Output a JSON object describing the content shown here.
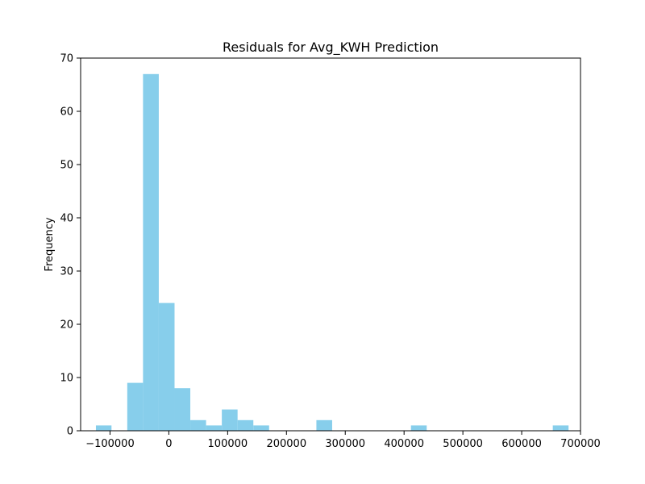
{
  "chart_data": {
    "type": "bar",
    "title": "Residuals for Avg_KWH Prediction",
    "xlabel": "",
    "ylabel": "Frequency",
    "xlim": [
      -150000,
      700000
    ],
    "ylim": [
      0,
      70
    ],
    "x_ticks": [
      -100000,
      0,
      100000,
      200000,
      300000,
      400000,
      500000,
      600000,
      700000
    ],
    "x_tick_labels": [
      "−100000",
      "0",
      "100000",
      "200000",
      "300000",
      "400000",
      "500000",
      "600000",
      "700000"
    ],
    "y_ticks": [
      0,
      10,
      20,
      30,
      40,
      50,
      60,
      70
    ],
    "y_tick_labels": [
      "0",
      "10",
      "20",
      "30",
      "40",
      "50",
      "60",
      "70"
    ],
    "bar_color": "#87ceeb",
    "grid": false,
    "bins": [
      {
        "x0": -124000,
        "x1": -97500,
        "count": 1
      },
      {
        "x0": -97500,
        "x1": -70700,
        "count": 0
      },
      {
        "x0": -70700,
        "x1": -43900,
        "count": 9
      },
      {
        "x0": -43900,
        "x1": -17100,
        "count": 67
      },
      {
        "x0": -17100,
        "x1": 9700,
        "count": 24
      },
      {
        "x0": 9700,
        "x1": 36500,
        "count": 8
      },
      {
        "x0": 36500,
        "x1": 63300,
        "count": 2
      },
      {
        "x0": 63300,
        "x1": 90100,
        "count": 1
      },
      {
        "x0": 90100,
        "x1": 116900,
        "count": 4
      },
      {
        "x0": 116900,
        "x1": 143700,
        "count": 2
      },
      {
        "x0": 143700,
        "x1": 170500,
        "count": 1
      },
      {
        "x0": 170500,
        "x1": 197300,
        "count": 0
      },
      {
        "x0": 197300,
        "x1": 224100,
        "count": 0
      },
      {
        "x0": 224100,
        "x1": 250900,
        "count": 0
      },
      {
        "x0": 250900,
        "x1": 277700,
        "count": 2
      },
      {
        "x0": 277700,
        "x1": 304500,
        "count": 0
      },
      {
        "x0": 304500,
        "x1": 331300,
        "count": 0
      },
      {
        "x0": 331300,
        "x1": 358100,
        "count": 0
      },
      {
        "x0": 358100,
        "x1": 384900,
        "count": 0
      },
      {
        "x0": 384900,
        "x1": 411700,
        "count": 0
      },
      {
        "x0": 411700,
        "x1": 438500,
        "count": 1
      },
      {
        "x0": 438500,
        "x1": 465300,
        "count": 0
      },
      {
        "x0": 465300,
        "x1": 492100,
        "count": 0
      },
      {
        "x0": 492100,
        "x1": 518900,
        "count": 0
      },
      {
        "x0": 518900,
        "x1": 545700,
        "count": 0
      },
      {
        "x0": 545700,
        "x1": 572500,
        "count": 0
      },
      {
        "x0": 572500,
        "x1": 599300,
        "count": 0
      },
      {
        "x0": 599300,
        "x1": 626100,
        "count": 0
      },
      {
        "x0": 626100,
        "x1": 652900,
        "count": 0
      },
      {
        "x0": 652900,
        "x1": 679700,
        "count": 1
      }
    ]
  }
}
